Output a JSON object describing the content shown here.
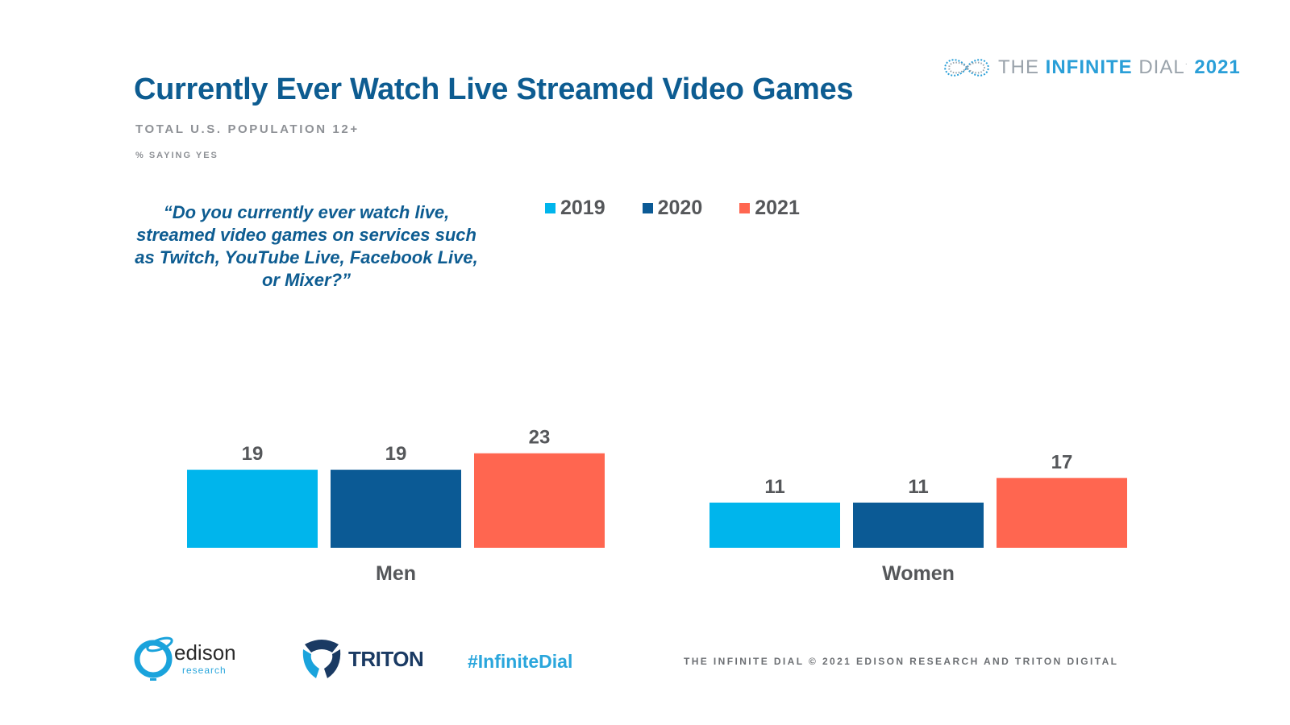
{
  "header": {
    "title": "Currently Ever Watch Live Streamed Video Games",
    "subtitle": "TOTAL U.S. POPULATION 12+",
    "subsubtitle": "% SAYING YES",
    "question": "“Do you currently ever watch live, streamed video games on services such as Twitch, YouTube Live, Facebook Live, or Mixer?”"
  },
  "brand": {
    "the": "THE",
    "infinite": "INFINITE",
    "dial": "DIAL",
    "year": "2021",
    "icon": "infinity-icon"
  },
  "colors": {
    "title": "#0d5c91",
    "s2019": "#00b5ec",
    "s2020": "#0b5a95",
    "s2021": "#ff6650",
    "accent": "#2aa6dc"
  },
  "chart_data": {
    "type": "bar",
    "title": "Currently Ever Watch Live Streamed Video Games",
    "categories": [
      "Men",
      "Women"
    ],
    "series": [
      {
        "name": "2019",
        "values": [
          19,
          11
        ]
      },
      {
        "name": "2020",
        "values": [
          19,
          11
        ]
      },
      {
        "name": "2021",
        "values": [
          23,
          17
        ]
      }
    ],
    "xlabel": "",
    "ylabel": "% saying yes",
    "ylim": [
      0,
      23
    ],
    "grid": false,
    "legend": "top"
  },
  "footer": {
    "edison": "edison",
    "edison_sub": "research",
    "triton": "TRITON",
    "hashtag": "#InfiniteDial",
    "copyright": "THE INFINITE DIAL   © 2021 EDISON RESEARCH AND TRITON DIGITAL"
  }
}
